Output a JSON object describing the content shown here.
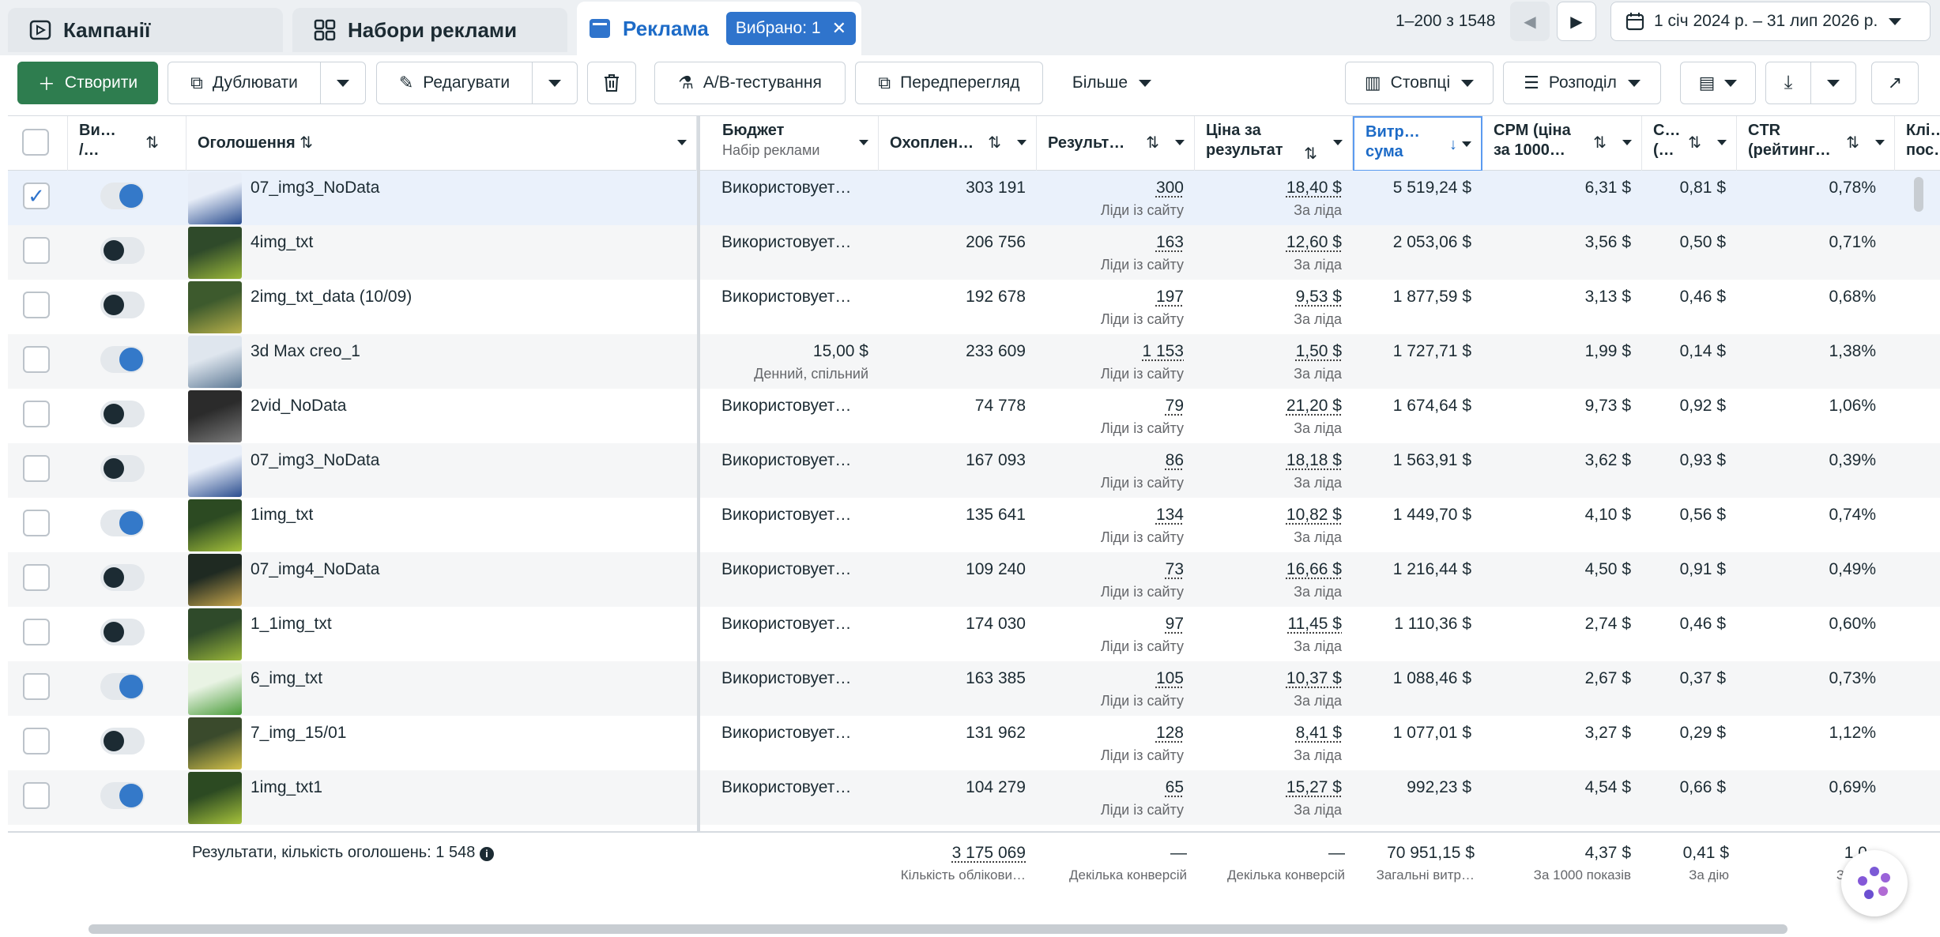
{
  "tabs": {
    "campaigns": "Кампанії",
    "adsets": "Набори реклами",
    "ads": "Реклама",
    "selected_badge": "Вибрано: 1"
  },
  "pager": {
    "range": "1–200 з 1548"
  },
  "date_range": "1 січ 2024 р. – 31 лип 2026 р.",
  "toolbar": {
    "create": "Створити",
    "duplicate": "Дублювати",
    "edit": "Редагувати",
    "ab_test": "A/B-тестування",
    "preview": "Передперегляд",
    "more": "Більше",
    "columns": "Стовпці",
    "breakdown": "Розподіл"
  },
  "headers": {
    "toggle": "Ви… /…",
    "ad": "Оголошення",
    "budget": "Бюджет",
    "budget_sub": "Набір реклами",
    "reach": "Охоплен…",
    "results": "Результ…",
    "cost": "Ціна за результат",
    "spend": "Витр… сума",
    "cpm": "CPM (ціна за 1000…",
    "cpc": "C… (…",
    "ctr": "CTR (рейтинг…",
    "clicks": "Клі… пос…"
  },
  "rows": [
    {
      "name": "07_img3_NoData",
      "on": true,
      "checked": true,
      "budget": "Використовует…",
      "budget_sub": "",
      "reach": "303 191",
      "results": "300",
      "results_sub": "Ліди із сайту",
      "cost": "18,40 $",
      "cost_sub": "За ліда",
      "spend": "5 519,24 $",
      "cpm": "6,31 $",
      "cpc": "0,81 $",
      "ctr": "0,78%"
    },
    {
      "name": "4img_txt",
      "on": false,
      "checked": false,
      "budget": "Використовует…",
      "budget_sub": "",
      "reach": "206 756",
      "results": "163",
      "results_sub": "Ліди із сайту",
      "cost": "12,60 $",
      "cost_sub": "За ліда",
      "spend": "2 053,06 $",
      "cpm": "3,56 $",
      "cpc": "0,50 $",
      "ctr": "0,71%"
    },
    {
      "name": "2img_txt_data (10/09)",
      "on": false,
      "checked": false,
      "budget": "Використовует…",
      "budget_sub": "",
      "reach": "192 678",
      "results": "197",
      "results_sub": "Ліди із сайту",
      "cost": "9,53 $",
      "cost_sub": "За ліда",
      "spend": "1 877,59 $",
      "cpm": "3,13 $",
      "cpc": "0,46 $",
      "ctr": "0,68%"
    },
    {
      "name": "3d Max creo_1",
      "on": true,
      "checked": false,
      "budget": "15,00 $",
      "budget_sub": "Денний, спільний",
      "reach": "233 609",
      "results": "1 153",
      "results_sub": "Ліди із сайту",
      "cost": "1,50 $",
      "cost_sub": "За ліда",
      "spend": "1 727,71 $",
      "cpm": "1,99 $",
      "cpc": "0,14 $",
      "ctr": "1,38%"
    },
    {
      "name": "2vid_NoData",
      "on": false,
      "checked": false,
      "budget": "Використовует…",
      "budget_sub": "",
      "reach": "74 778",
      "results": "79",
      "results_sub": "Ліди із сайту",
      "cost": "21,20 $",
      "cost_sub": "За ліда",
      "spend": "1 674,64 $",
      "cpm": "9,73 $",
      "cpc": "0,92 $",
      "ctr": "1,06%"
    },
    {
      "name": "07_img3_NoData",
      "on": false,
      "checked": false,
      "budget": "Використовует…",
      "budget_sub": "",
      "reach": "167 093",
      "results": "86",
      "results_sub": "Ліди із сайту",
      "cost": "18,18 $",
      "cost_sub": "За ліда",
      "spend": "1 563,91 $",
      "cpm": "3,62 $",
      "cpc": "0,93 $",
      "ctr": "0,39%"
    },
    {
      "name": "1img_txt",
      "on": true,
      "checked": false,
      "budget": "Використовует…",
      "budget_sub": "",
      "reach": "135 641",
      "results": "134",
      "results_sub": "Ліди із сайту",
      "cost": "10,82 $",
      "cost_sub": "За ліда",
      "spend": "1 449,70 $",
      "cpm": "4,10 $",
      "cpc": "0,56 $",
      "ctr": "0,74%"
    },
    {
      "name": "07_img4_NoData",
      "on": false,
      "checked": false,
      "budget": "Використовует…",
      "budget_sub": "",
      "reach": "109 240",
      "results": "73",
      "results_sub": "Ліди із сайту",
      "cost": "16,66 $",
      "cost_sub": "За ліда",
      "spend": "1 216,44 $",
      "cpm": "4,50 $",
      "cpc": "0,91 $",
      "ctr": "0,49%"
    },
    {
      "name": "1_1img_txt",
      "on": false,
      "checked": false,
      "budget": "Використовует…",
      "budget_sub": "",
      "reach": "174 030",
      "results": "97",
      "results_sub": "Ліди із сайту",
      "cost": "11,45 $",
      "cost_sub": "За ліда",
      "spend": "1 110,36 $",
      "cpm": "2,74 $",
      "cpc": "0,46 $",
      "ctr": "0,60%"
    },
    {
      "name": "6_img_txt",
      "on": true,
      "checked": false,
      "budget": "Використовует…",
      "budget_sub": "",
      "reach": "163 385",
      "results": "105",
      "results_sub": "Ліди із сайту",
      "cost": "10,37 $",
      "cost_sub": "За ліда",
      "spend": "1 088,46 $",
      "cpm": "2,67 $",
      "cpc": "0,37 $",
      "ctr": "0,73%"
    },
    {
      "name": "7_img_15/01",
      "on": false,
      "checked": false,
      "budget": "Використовует…",
      "budget_sub": "",
      "reach": "131 962",
      "results": "128",
      "results_sub": "Ліди із сайту",
      "cost": "8,41 $",
      "cost_sub": "За ліда",
      "spend": "1 077,01 $",
      "cpm": "3,27 $",
      "cpc": "0,29 $",
      "ctr": "1,12%"
    },
    {
      "name": "1img_txt1",
      "on": true,
      "checked": false,
      "budget": "Використовует…",
      "budget_sub": "",
      "reach": "104 279",
      "results": "65",
      "results_sub": "Ліди із сайту",
      "cost": "15,27 $",
      "cost_sub": "За ліда",
      "spend": "992,23 $",
      "cpm": "4,54 $",
      "cpc": "0,66 $",
      "ctr": "0,69%"
    }
  ],
  "footer": {
    "summary": "Результати, кількість оголошень: 1 548",
    "reach": "3 175 069",
    "reach_sub": "Кількість облікови…",
    "results": "—",
    "results_sub": "Декілька конверсій",
    "cost": "—",
    "cost_sub": "Декілька конверсій",
    "spend": "70 951,15 $",
    "spend_sub": "Загальні витр…",
    "cpm": "4,37 $",
    "cpm_sub": "За 1000 показів",
    "cpc": "0,41 $",
    "cpc_sub": "За дію",
    "ctr": "1,0…",
    "ctr_sub": "За по…"
  },
  "colors": {
    "accent": "#2f74cc",
    "create_green": "#2e7d4f",
    "toggle_on": "#3479c9"
  }
}
